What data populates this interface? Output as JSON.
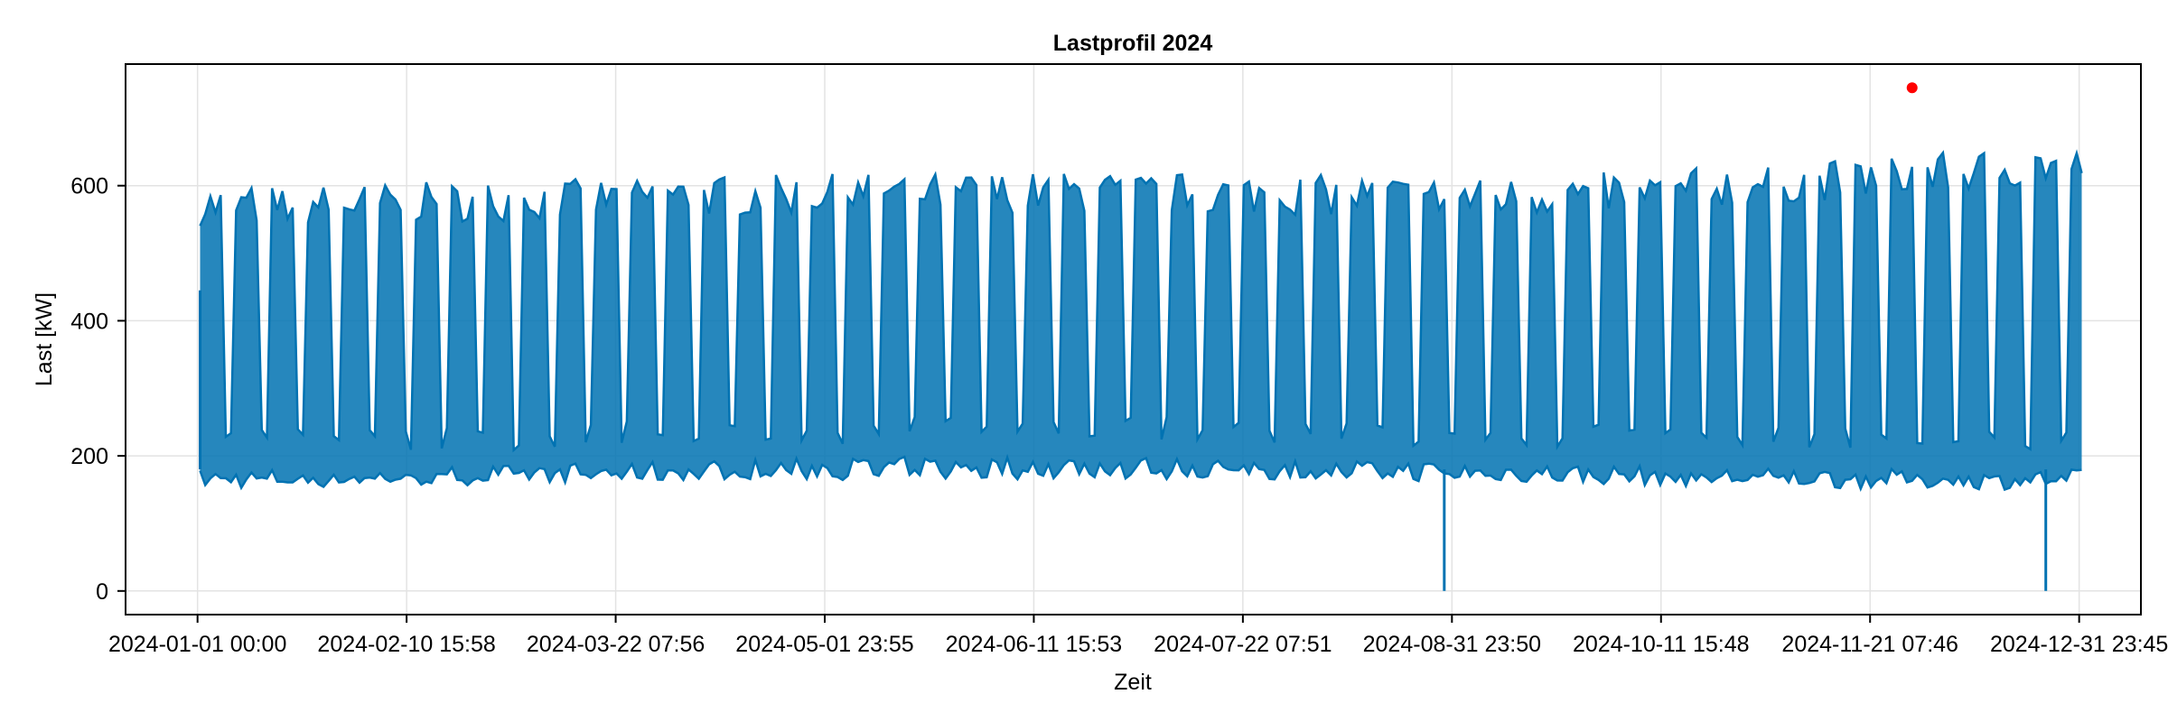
{
  "chart_data": {
    "type": "line",
    "title": "Lastprofil 2024",
    "xlabel": "Zeit",
    "ylabel": "Last [kW]",
    "x_range": [
      "2024-01-01 00:00",
      "2024-12-31 23:45"
    ],
    "x_lim": [
      "2023-12-18 00:00",
      "2025-01-13 00:00"
    ],
    "ylim": [
      -35,
      780
    ],
    "y_ticks": [
      0,
      200,
      400,
      600
    ],
    "x_ticks": [
      {
        "t": "2024-01-01 00:00",
        "label": "2024-01-01 00:00"
      },
      {
        "t": "2024-02-10 15:58",
        "label": "2024-02-10 15:58"
      },
      {
        "t": "2024-03-22 07:56",
        "label": "2024-03-22 07:56"
      },
      {
        "t": "2024-05-01 23:55",
        "label": "2024-05-01 23:55"
      },
      {
        "t": "2024-06-11 15:53",
        "label": "2024-06-11 15:53"
      },
      {
        "t": "2024-07-22 07:51",
        "label": "2024-07-22 07:51"
      },
      {
        "t": "2024-08-31 23:50",
        "label": "2024-08-31 23:50"
      },
      {
        "t": "2024-10-11 15:48",
        "label": "2024-10-11 15:48"
      },
      {
        "t": "2024-11-21 07:46",
        "label": "2024-11-21 07:46"
      },
      {
        "t": "2024-12-31 23:45",
        "label": "2024-12-31 23:45"
      }
    ],
    "grid": true,
    "series": [
      {
        "color": "#0072b2",
        "resolution": "daily min/max envelope (from the plotted load profile)",
        "notable": [
          {
            "x": "2024-01-01",
            "y": 445
          },
          {
            "x": "2024-08-30",
            "y": 0
          },
          {
            "x": "2024-12-25",
            "y": 0
          }
        ]
      }
    ],
    "peak_marker": {
      "x": "2024-11-29 12:00",
      "y": 745,
      "color": "#ff0000"
    }
  }
}
